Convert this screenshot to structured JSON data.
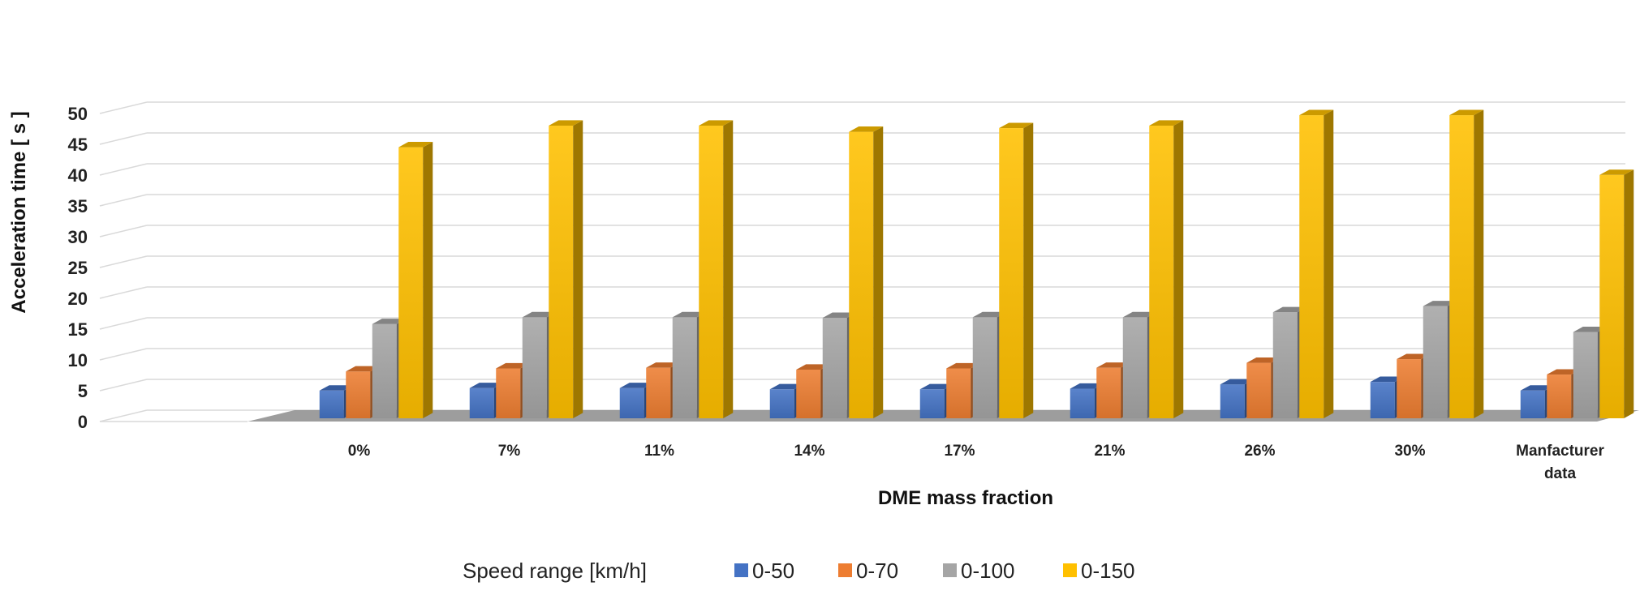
{
  "chart_data": {
    "type": "bar",
    "style": "3d-clustered-column",
    "title": "",
    "xlabel": "DME mass fraction",
    "ylabel": "Acceleration time [ s ]",
    "ylim": [
      0,
      50
    ],
    "yticks": [
      0,
      5,
      10,
      15,
      20,
      25,
      30,
      35,
      40,
      45,
      50
    ],
    "grid": true,
    "categories": [
      "",
      "0%",
      "7%",
      "11%",
      "14%",
      "17%",
      "21%",
      "26%",
      "30%",
      "Manfacturer data"
    ],
    "legend_title": "Speed range [km/h]",
    "legend_position": "bottom",
    "series": [
      {
        "name": "0-50",
        "color": "#4472C4",
        "values": [
          null,
          4.5,
          4.9,
          4.9,
          4.7,
          4.7,
          4.8,
          5.5,
          5.9,
          4.5
        ]
      },
      {
        "name": "0-70",
        "color": "#ED7D31",
        "values": [
          null,
          7.6,
          8.1,
          8.2,
          7.9,
          8.1,
          8.2,
          9.0,
          9.6,
          7.1
        ]
      },
      {
        "name": "0-100",
        "color": "#A5A5A5",
        "values": [
          null,
          15.3,
          16.4,
          16.4,
          16.3,
          16.4,
          16.4,
          17.2,
          18.2,
          14.0
        ]
      },
      {
        "name": "0-150",
        "color": "#FFC000",
        "values": [
          null,
          44.0,
          47.5,
          47.5,
          46.5,
          47.1,
          47.5,
          49.2,
          49.2,
          39.5
        ]
      }
    ]
  }
}
